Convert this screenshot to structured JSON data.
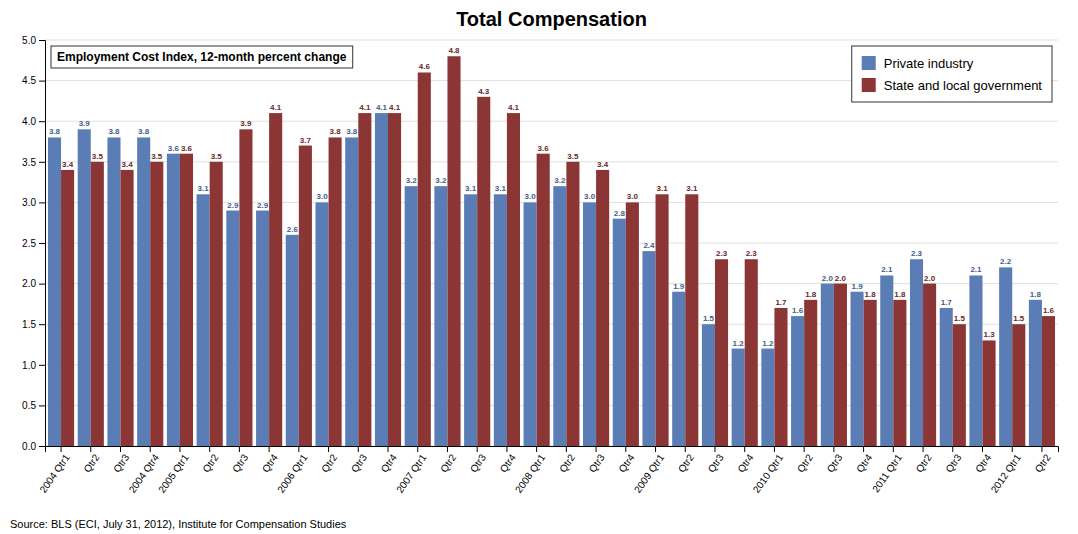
{
  "chart_data": {
    "type": "bar",
    "title": "Total Compensation",
    "subtitle": "Employment Cost Index, 12-month percent change",
    "source": "Source: BLS (ECI, July 31, 2012), Institute for Compensation Studies",
    "categories": [
      "2004 Qtr1",
      "Qtr2",
      "Qtr3",
      "2004 Qtr4",
      "2005 Qtr1",
      "Qtr2",
      "Qtr3",
      "Qtr4",
      "2006 Qtr1",
      "Qtr2",
      "Qtr3",
      "Qtr4",
      "2007 Qtr1",
      "Qtr2",
      "Qtr3",
      "Qtr4",
      "2008 Qtr1",
      "Qtr2",
      "Qtr3",
      "Qtr4",
      "2009 Qtr1",
      "Qtr2",
      "Qtr3",
      "Qtr4",
      "2010 Qtr1",
      "Qtr2",
      "Qtr3",
      "Qtr4",
      "2011 Qtr1",
      "Qtr2",
      "Qtr3",
      "Qtr4",
      "2012 Qtr1",
      "Qtr2"
    ],
    "series": [
      {
        "name": "Private industry",
        "color": "#5B7DB5",
        "values": [
          3.8,
          3.9,
          3.8,
          3.8,
          3.6,
          3.1,
          2.9,
          2.9,
          2.6,
          3.0,
          3.8,
          4.1,
          3.2,
          3.2,
          3.1,
          3.1,
          3.0,
          3.2,
          3.0,
          2.8,
          2.4,
          1.9,
          1.5,
          1.2,
          1.2,
          1.6,
          2.0,
          1.9,
          2.1,
          2.3,
          1.7,
          2.1,
          2.2,
          1.8
        ],
        "value_labels": [
          "3.8",
          "3.9",
          "3.8",
          "3.8",
          "3.6",
          "3.1",
          "2.9",
          "2.9",
          "2.6",
          "3.0",
          "3.8",
          "4.1",
          "3.2",
          "3.2",
          "3.1",
          "3.1",
          "3.0",
          "3.2",
          "3.0",
          "2.8",
          "2.4",
          "1.9",
          "1.5",
          "1.2",
          "1.2",
          "1.6",
          "2.0",
          "1.9",
          "2.1",
          "2.3",
          "1.7",
          "2.1",
          "2.2",
          "1.8"
        ]
      },
      {
        "name": "State and local government",
        "color": "#8B3535",
        "values": [
          3.4,
          3.5,
          3.4,
          3.5,
          3.6,
          3.5,
          3.9,
          4.1,
          3.7,
          3.8,
          4.1,
          4.1,
          4.6,
          4.8,
          4.3,
          4.1,
          3.6,
          3.5,
          3.4,
          3.0,
          3.1,
          3.1,
          2.3,
          2.3,
          1.7,
          1.8,
          2.0,
          1.8,
          1.8,
          2.0,
          1.5,
          1.3,
          1.5,
          1.6
        ],
        "value_labels": [
          "3.4",
          "3.5",
          "3.4",
          "3.5",
          "3.6",
          "3.5",
          "3.9",
          "4.1",
          "3.7",
          "3.8",
          "4.1",
          "4.1",
          "4.6",
          "4.8",
          "4.3",
          "4.1",
          "3.6",
          "3.5",
          "3.4",
          "3.0",
          "3.1",
          "3.1",
          "2.3",
          "2.3",
          "1.7",
          "1.8",
          "2.0",
          "1.8",
          "1.8",
          "2.0",
          "1.5",
          "1.3",
          "1.5",
          "1.6"
        ]
      }
    ],
    "ylim": [
      0.0,
      5.0
    ],
    "yticks": [
      {
        "value": 0.0,
        "label": "0.0"
      },
      0.5,
      {
        "value": 1.0,
        "label": "1.0"
      },
      1.5,
      {
        "value": 2.0,
        "label": "2.0"
      },
      2.5,
      {
        "value": 3.0,
        "label": "3.0"
      },
      3.5,
      {
        "value": 4.0,
        "label": "4.0"
      },
      4.5,
      {
        "value": 5.0,
        "label": "5.0"
      }
    ],
    "grid": true,
    "legend": "upper right",
    "data_labels": true
  }
}
